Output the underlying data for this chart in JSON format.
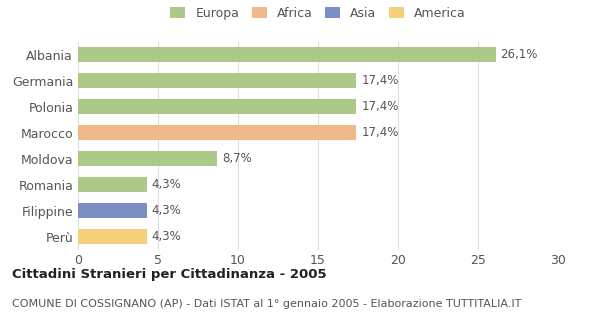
{
  "categories": [
    "Albania",
    "Germania",
    "Polonia",
    "Marocco",
    "Moldova",
    "Romania",
    "Filippine",
    "Perù"
  ],
  "values": [
    26.1,
    17.4,
    17.4,
    17.4,
    8.7,
    4.3,
    4.3,
    4.3
  ],
  "labels": [
    "26,1%",
    "17,4%",
    "17,4%",
    "17,4%",
    "8,7%",
    "4,3%",
    "4,3%",
    "4,3%"
  ],
  "colors": [
    "#adc98a",
    "#adc98a",
    "#adc98a",
    "#f0b98a",
    "#adc98a",
    "#adc98a",
    "#7b8fc4",
    "#f5d07a"
  ],
  "legend_items": [
    {
      "label": "Europa",
      "color": "#adc98a"
    },
    {
      "label": "Africa",
      "color": "#f0b98a"
    },
    {
      "label": "Asia",
      "color": "#7b8fc4"
    },
    {
      "label": "America",
      "color": "#f5d07a"
    }
  ],
  "xlim": [
    0,
    30
  ],
  "xticks": [
    0,
    5,
    10,
    15,
    20,
    25,
    30
  ],
  "title": "Cittadini Stranieri per Cittadinanza - 2005",
  "subtitle": "COMUNE DI COSSIGNANO (AP) - Dati ISTAT al 1° gennaio 2005 - Elaborazione TUTTITALIA.IT",
  "background_color": "#ffffff",
  "grid_color": "#dddddd",
  "bar_height": 0.55,
  "title_fontsize": 9.5,
  "subtitle_fontsize": 8,
  "tick_fontsize": 9,
  "label_fontsize": 8.5
}
